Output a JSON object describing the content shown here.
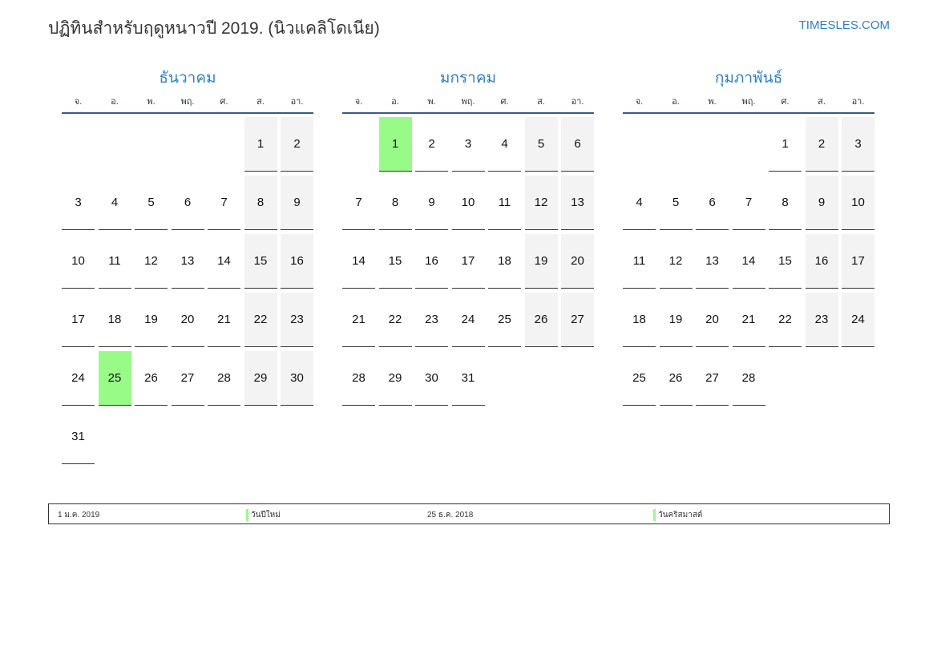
{
  "header": {
    "title": "ปฏิทินสำหรับฤดูหนาวปี 2019. (นิวแคลิโดเนีย)",
    "brand": "TIMESLES.COM"
  },
  "weekdays": [
    "จ.",
    "อ.",
    "พ.",
    "พฤ.",
    "ศ.",
    "ส.",
    "อา."
  ],
  "months": [
    {
      "name": "ธันวาคม",
      "days": 31,
      "highlighted": [
        25
      ]
    },
    {
      "name": "มกราคม",
      "days": 31,
      "highlighted": [
        1
      ]
    },
    {
      "name": "กุมภาพันธ์",
      "days": 28,
      "highlighted": []
    }
  ],
  "colors": {
    "accent": "#2e7fc8",
    "holiday": "#98fb88",
    "weekend": "#f3f3f3"
  },
  "legend": [
    {
      "date": "1 ม.ค. 2019",
      "name": "วันปีใหม่"
    },
    {
      "date": "25 ธ.ค. 2018",
      "name": "วันคริสมาสต์"
    }
  ]
}
